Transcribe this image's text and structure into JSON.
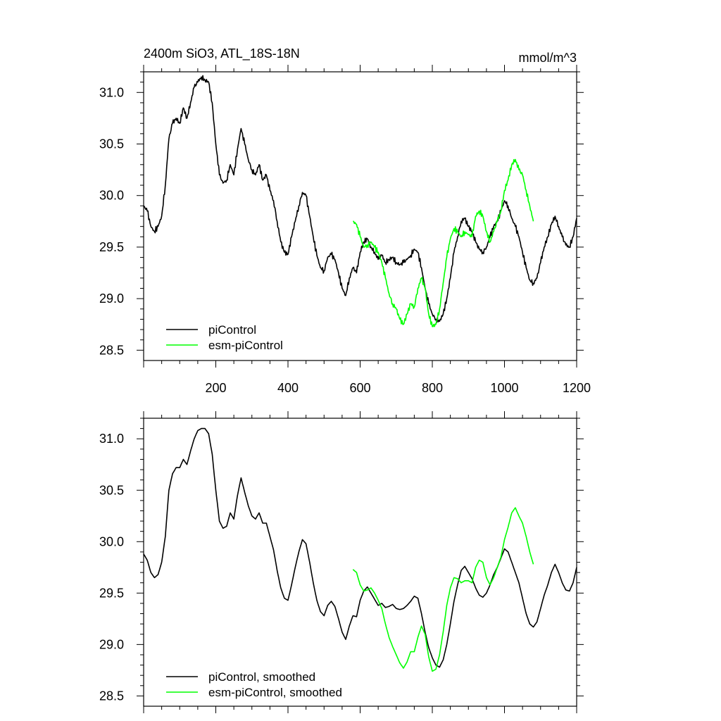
{
  "chart_data": [
    {
      "type": "line",
      "title": "2400m SiO3, ATL_18S-18N",
      "units": "mmol/m^3",
      "xlim": [
        0,
        1200
      ],
      "ylim": [
        28.4,
        31.2
      ],
      "x_tick_labels": [
        "200",
        "400",
        "600",
        "800",
        "1000",
        "1200"
      ],
      "y_tick_labels": [
        "28.5",
        "29.0",
        "29.5",
        "30.0",
        "30.5",
        "31.0"
      ],
      "legend_position": "bottom-left",
      "series": [
        {
          "name": "piControl",
          "color": "#000000",
          "x": [
            0,
            10,
            20,
            30,
            40,
            50,
            60,
            70,
            80,
            90,
            100,
            110,
            120,
            130,
            140,
            150,
            160,
            170,
            180,
            190,
            200,
            210,
            220,
            230,
            240,
            250,
            260,
            270,
            280,
            290,
            300,
            310,
            320,
            330,
            340,
            350,
            360,
            370,
            380,
            390,
            400,
            410,
            420,
            430,
            440,
            450,
            460,
            470,
            480,
            490,
            500,
            510,
            520,
            530,
            540,
            550,
            560,
            570,
            580,
            590,
            600,
            610,
            620,
            630,
            640,
            650,
            660,
            670,
            680,
            690,
            700,
            710,
            720,
            730,
            740,
            750,
            760,
            770,
            780,
            790,
            800,
            810,
            820,
            830,
            840,
            850,
            860,
            870,
            880,
            890,
            900,
            910,
            920,
            930,
            940,
            950,
            960,
            970,
            980,
            990,
            1000,
            1010,
            1020,
            1030,
            1040,
            1050,
            1060,
            1070,
            1080,
            1090,
            1100,
            1110,
            1120,
            1130,
            1140,
            1150,
            1160,
            1170,
            1180,
            1190,
            1200
          ],
          "values": [
            29.9,
            29.85,
            29.7,
            29.65,
            29.7,
            29.8,
            30.1,
            30.55,
            30.7,
            30.75,
            30.7,
            30.85,
            30.75,
            30.9,
            31.05,
            31.1,
            31.15,
            31.12,
            31.1,
            30.9,
            30.5,
            30.2,
            30.12,
            30.15,
            30.3,
            30.2,
            30.45,
            30.65,
            30.5,
            30.35,
            30.25,
            30.2,
            30.3,
            30.15,
            30.2,
            30.05,
            29.95,
            29.75,
            29.55,
            29.45,
            29.43,
            29.6,
            29.75,
            29.9,
            30.03,
            30.0,
            29.8,
            29.6,
            29.42,
            29.3,
            29.27,
            29.4,
            29.43,
            29.38,
            29.25,
            29.1,
            29.03,
            29.2,
            29.3,
            29.25,
            29.45,
            29.55,
            29.58,
            29.5,
            29.45,
            29.38,
            29.42,
            29.35,
            29.38,
            29.4,
            29.35,
            29.33,
            29.35,
            29.38,
            29.42,
            29.48,
            29.45,
            29.3,
            29.1,
            28.95,
            28.85,
            28.8,
            28.78,
            28.85,
            29.0,
            29.2,
            29.45,
            29.6,
            29.75,
            29.78,
            29.7,
            29.65,
            29.55,
            29.48,
            29.45,
            29.5,
            29.6,
            29.7,
            29.75,
            29.85,
            29.95,
            29.9,
            29.78,
            29.7,
            29.6,
            29.45,
            29.3,
            29.18,
            29.15,
            29.2,
            29.35,
            29.5,
            29.6,
            29.72,
            29.8,
            29.7,
            29.6,
            29.52,
            29.5,
            29.6,
            29.78
          ]
        },
        {
          "name": "esm-piControl",
          "color": "#00ff00",
          "x": [
            580,
            590,
            600,
            610,
            620,
            630,
            640,
            650,
            660,
            670,
            680,
            690,
            700,
            710,
            720,
            730,
            740,
            750,
            760,
            770,
            780,
            790,
            800,
            810,
            820,
            830,
            840,
            850,
            860,
            870,
            880,
            890,
            900,
            910,
            920,
            930,
            940,
            950,
            960,
            970,
            980,
            990,
            1000,
            1010,
            1020,
            1030,
            1040,
            1050,
            1060,
            1070,
            1080
          ],
          "values": [
            29.75,
            29.72,
            29.6,
            29.5,
            29.52,
            29.55,
            29.5,
            29.45,
            29.35,
            29.2,
            29.05,
            28.95,
            28.9,
            28.8,
            28.75,
            28.85,
            28.95,
            28.92,
            29.1,
            29.2,
            29.1,
            28.85,
            28.73,
            28.75,
            28.9,
            29.15,
            29.4,
            29.58,
            29.68,
            29.65,
            29.6,
            29.65,
            29.62,
            29.6,
            29.8,
            29.85,
            29.8,
            29.65,
            29.55,
            29.65,
            29.75,
            29.85,
            30.05,
            30.15,
            30.3,
            30.35,
            30.25,
            30.2,
            30.05,
            29.9,
            29.75
          ]
        }
      ]
    },
    {
      "type": "line",
      "title": "",
      "xlim": [
        0,
        1200
      ],
      "ylim": [
        28.4,
        31.2
      ],
      "y_tick_labels": [
        "28.5",
        "29.0",
        "29.5",
        "30.0",
        "30.5",
        "31.0"
      ],
      "legend_position": "bottom-left",
      "series": [
        {
          "name": "piControl, smoothed",
          "color": "#000000",
          "x": [
            0,
            10,
            20,
            30,
            40,
            50,
            60,
            70,
            80,
            90,
            100,
            110,
            120,
            130,
            140,
            150,
            160,
            170,
            180,
            190,
            200,
            210,
            220,
            230,
            240,
            250,
            260,
            270,
            280,
            290,
            300,
            310,
            320,
            330,
            340,
            350,
            360,
            370,
            380,
            390,
            400,
            410,
            420,
            430,
            440,
            450,
            460,
            470,
            480,
            490,
            500,
            510,
            520,
            530,
            540,
            550,
            560,
            570,
            580,
            590,
            600,
            610,
            620,
            630,
            640,
            650,
            660,
            670,
            680,
            690,
            700,
            710,
            720,
            730,
            740,
            750,
            760,
            770,
            780,
            790,
            800,
            810,
            820,
            830,
            840,
            850,
            860,
            870,
            880,
            890,
            900,
            910,
            920,
            930,
            940,
            950,
            960,
            970,
            980,
            990,
            1000,
            1010,
            1020,
            1030,
            1040,
            1050,
            1060,
            1070,
            1080,
            1090,
            1100,
            1110,
            1120,
            1130,
            1140,
            1150,
            1160,
            1170,
            1180,
            1190,
            1200
          ],
          "values": [
            29.88,
            29.82,
            29.7,
            29.65,
            29.68,
            29.8,
            30.05,
            30.5,
            30.66,
            30.72,
            30.72,
            30.8,
            30.75,
            30.88,
            31.0,
            31.08,
            31.1,
            31.1,
            31.05,
            30.85,
            30.5,
            30.2,
            30.13,
            30.15,
            30.28,
            30.22,
            30.45,
            30.62,
            30.48,
            30.35,
            30.25,
            30.22,
            30.28,
            30.18,
            30.18,
            30.05,
            29.92,
            29.72,
            29.55,
            29.45,
            29.43,
            29.58,
            29.75,
            29.9,
            30.02,
            29.98,
            29.8,
            29.6,
            29.43,
            29.32,
            29.28,
            29.38,
            29.42,
            29.37,
            29.25,
            29.12,
            29.05,
            29.18,
            29.28,
            29.27,
            29.43,
            29.52,
            29.56,
            29.5,
            29.44,
            29.38,
            29.4,
            29.36,
            29.37,
            29.39,
            29.35,
            29.34,
            29.35,
            29.38,
            29.42,
            29.47,
            29.45,
            29.3,
            29.12,
            28.97,
            28.87,
            28.8,
            28.78,
            28.85,
            29.0,
            29.2,
            29.42,
            29.58,
            29.72,
            29.76,
            29.7,
            29.64,
            29.55,
            29.48,
            29.46,
            29.5,
            29.58,
            29.68,
            29.75,
            29.84,
            29.93,
            29.9,
            29.8,
            29.7,
            29.6,
            29.45,
            29.3,
            29.2,
            29.17,
            29.22,
            29.35,
            29.48,
            29.58,
            29.7,
            29.78,
            29.7,
            29.6,
            29.53,
            29.52,
            29.6,
            29.75
          ]
        },
        {
          "name": "esm-piControl, smoothed",
          "color": "#00ff00",
          "x": [
            580,
            590,
            600,
            610,
            620,
            630,
            640,
            650,
            660,
            670,
            680,
            690,
            700,
            710,
            720,
            730,
            740,
            750,
            760,
            770,
            780,
            790,
            800,
            810,
            820,
            830,
            840,
            850,
            860,
            870,
            880,
            890,
            900,
            910,
            920,
            930,
            940,
            950,
            960,
            970,
            980,
            990,
            1000,
            1010,
            1020,
            1030,
            1040,
            1050,
            1060,
            1070,
            1080
          ],
          "values": [
            29.73,
            29.7,
            29.58,
            29.52,
            29.53,
            29.55,
            29.5,
            29.43,
            29.35,
            29.2,
            29.07,
            28.98,
            28.9,
            28.82,
            28.77,
            28.83,
            28.93,
            28.93,
            29.07,
            29.18,
            29.1,
            28.88,
            28.74,
            28.76,
            28.9,
            29.12,
            29.38,
            29.55,
            29.65,
            29.64,
            29.6,
            29.62,
            29.62,
            29.6,
            29.75,
            29.82,
            29.8,
            29.65,
            29.58,
            29.65,
            29.75,
            29.85,
            30.02,
            30.14,
            30.28,
            30.33,
            30.25,
            30.18,
            30.05,
            29.9,
            29.78
          ]
        }
      ]
    }
  ]
}
